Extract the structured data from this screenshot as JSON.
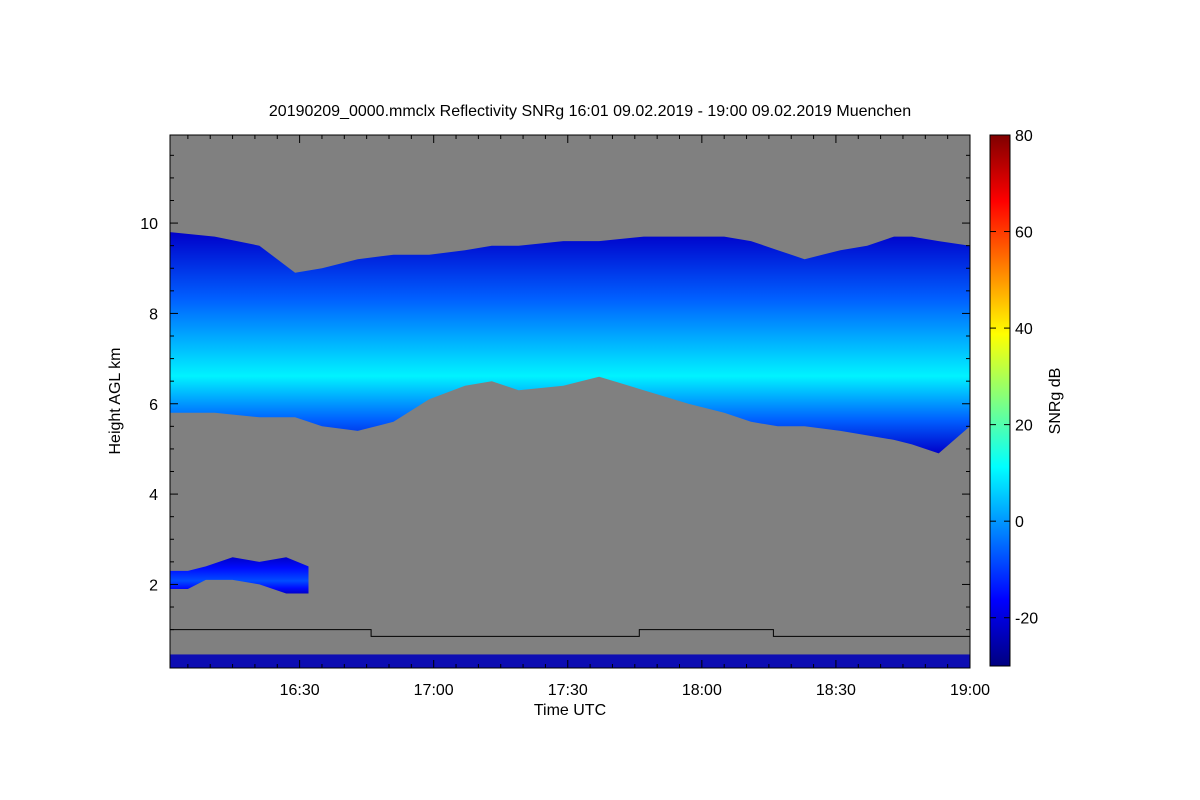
{
  "chart_data": {
    "type": "heatmap",
    "title": "20190209_0000.mmclx Reflectivity SNRg   16:01 09.02.2019 - 19:00 09.02.2019 Muenchen",
    "xlabel": "Time UTC",
    "ylabel": "Height AGL km",
    "colorbar_label": "SNRg dB",
    "x_ticks": [
      "16:30",
      "17:00",
      "17:30",
      "18:00",
      "18:30",
      "19:00"
    ],
    "x_tick_minutes": [
      29,
      59,
      89,
      119,
      149,
      179
    ],
    "x_range_minutes": [
      0,
      179
    ],
    "y_ticks": [
      2,
      4,
      6,
      8,
      10
    ],
    "ylim": [
      0.15,
      11.95
    ],
    "colorbar_ticks": [
      -20,
      0,
      20,
      40,
      60,
      80
    ],
    "colorbar_range": [
      -30,
      80
    ],
    "no_signal_color": "#808080",
    "colormap": [
      "#000080",
      "#0000ff",
      "#0080ff",
      "#00ffff",
      "#80ff80",
      "#ffff00",
      "#ff8000",
      "#ff0000",
      "#800000"
    ],
    "cloud_layers": [
      {
        "name": "upper",
        "time_minutes": [
          0,
          10,
          20,
          28,
          34,
          42,
          50,
          58,
          66,
          72,
          78,
          88,
          96,
          106,
          116,
          124,
          130,
          136,
          142,
          150,
          156,
          162,
          166,
          172,
          179
        ],
        "top_km": [
          9.8,
          9.7,
          9.5,
          8.9,
          9.0,
          9.2,
          9.3,
          9.3,
          9.4,
          9.5,
          9.5,
          9.6,
          9.6,
          9.7,
          9.7,
          9.7,
          9.6,
          9.4,
          9.2,
          9.4,
          9.5,
          9.7,
          9.7,
          9.6,
          9.5
        ],
        "base_km": [
          5.8,
          5.8,
          5.7,
          5.7,
          5.5,
          5.4,
          5.6,
          6.1,
          6.4,
          6.5,
          6.3,
          6.4,
          6.6,
          6.3,
          6.0,
          5.8,
          5.6,
          5.5,
          5.5,
          5.4,
          5.3,
          5.2,
          5.1,
          4.9,
          5.5
        ],
        "peak_snr_db": 10
      },
      {
        "name": "low",
        "time_minutes": [
          0,
          4,
          8,
          14,
          20,
          26,
          31
        ],
        "top_km": [
          2.3,
          2.3,
          2.4,
          2.6,
          2.5,
          2.6,
          2.4
        ],
        "base_km": [
          1.9,
          1.9,
          2.1,
          2.1,
          2.0,
          1.8,
          1.8
        ],
        "peak_snr_db": -8
      }
    ],
    "surface_clutter_top_km": 0.45,
    "line_series": {
      "name": "",
      "time_minutes": [
        0,
        45,
        45,
        105,
        105,
        135,
        135,
        179
      ],
      "height_km": [
        1.0,
        1.0,
        0.85,
        0.85,
        1.0,
        1.0,
        0.85,
        0.85
      ]
    }
  }
}
